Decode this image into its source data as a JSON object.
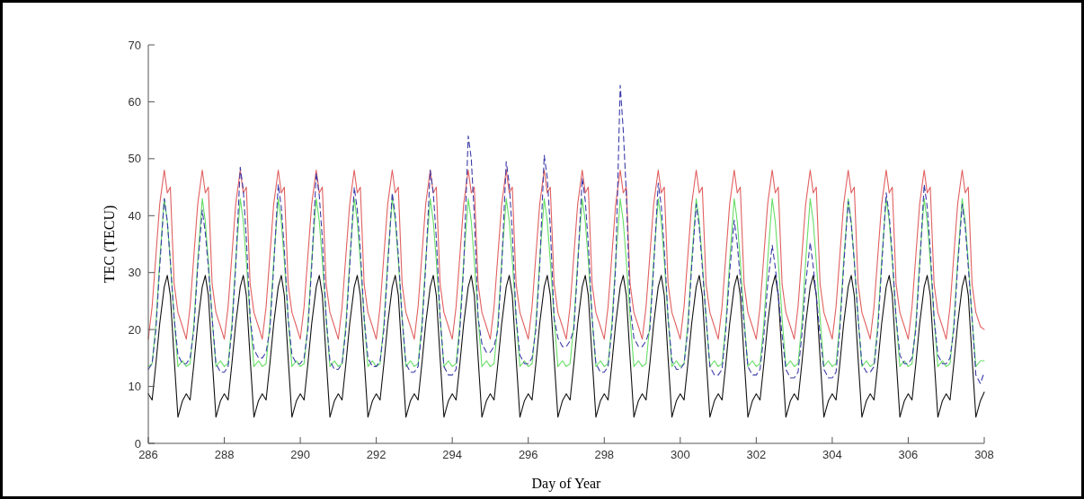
{
  "chart_data": {
    "type": "line",
    "xlabel": "Day of Year",
    "ylabel": "TEC (TECU)",
    "xlim": [
      286,
      308
    ],
    "ylim": [
      0,
      70
    ],
    "xticks": [
      286,
      288,
      290,
      292,
      294,
      296,
      298,
      300,
      302,
      304,
      306,
      308
    ],
    "yticks": [
      0,
      10,
      20,
      30,
      40,
      50,
      60,
      70
    ],
    "marker": "none",
    "x": [
      286,
      286.1,
      286.2,
      286.3,
      286.42,
      286.5,
      286.58,
      286.68,
      286.78,
      286.9,
      287,
      287.1,
      287.2,
      287.3,
      287.42,
      287.5,
      287.58,
      287.68,
      287.78,
      287.9,
      288,
      288.1,
      288.2,
      288.3,
      288.42,
      288.5,
      288.58,
      288.68,
      288.78,
      288.9,
      289,
      289.1,
      289.2,
      289.3,
      289.42,
      289.5,
      289.58,
      289.68,
      289.78,
      289.9,
      290,
      290.1,
      290.2,
      290.3,
      290.42,
      290.5,
      290.58,
      290.68,
      290.78,
      290.9,
      291,
      291.1,
      291.2,
      291.3,
      291.42,
      291.5,
      291.58,
      291.68,
      291.78,
      291.9,
      292,
      292.1,
      292.2,
      292.3,
      292.42,
      292.5,
      292.58,
      292.68,
      292.78,
      292.9,
      293,
      293.1,
      293.2,
      293.3,
      293.42,
      293.5,
      293.58,
      293.68,
      293.78,
      293.9,
      294,
      294.1,
      294.2,
      294.3,
      294.42,
      294.5,
      294.58,
      294.68,
      294.78,
      294.9,
      295,
      295.1,
      295.2,
      295.3,
      295.42,
      295.5,
      295.58,
      295.68,
      295.78,
      295.9,
      296,
      296.1,
      296.2,
      296.3,
      296.42,
      296.5,
      296.58,
      296.68,
      296.78,
      296.9,
      297,
      297.1,
      297.2,
      297.3,
      297.42,
      297.5,
      297.58,
      297.68,
      297.78,
      297.9,
      298,
      298.1,
      298.2,
      298.3,
      298.42,
      298.5,
      298.58,
      298.68,
      298.78,
      298.9,
      299,
      299.1,
      299.2,
      299.3,
      299.42,
      299.5,
      299.58,
      299.68,
      299.78,
      299.9,
      300,
      300.1,
      300.2,
      300.3,
      300.42,
      300.5,
      300.58,
      300.68,
      300.78,
      300.9,
      301,
      301.1,
      301.2,
      301.3,
      301.42,
      301.5,
      301.58,
      301.68,
      301.78,
      301.9,
      302,
      302.1,
      302.2,
      302.3,
      302.42,
      302.5,
      302.58,
      302.68,
      302.78,
      302.9,
      303,
      303.1,
      303.2,
      303.3,
      303.42,
      303.5,
      303.58,
      303.68,
      303.78,
      303.9,
      304,
      304.1,
      304.2,
      304.3,
      304.42,
      304.5,
      304.58,
      304.68,
      304.78,
      304.9,
      305,
      305.1,
      305.2,
      305.3,
      305.42,
      305.5,
      305.58,
      305.68,
      305.78,
      305.9,
      306,
      306.1,
      306.2,
      306.3,
      306.42,
      306.5,
      306.58,
      306.68,
      306.78,
      306.9,
      307,
      307.1,
      307.2,
      307.3,
      307.42,
      307.5,
      307.58,
      307.68,
      307.78,
      307.9,
      308
    ],
    "series": [
      {
        "color": "#e06060",
        "line_style": "solid",
        "values": [
          18.3,
          24,
          33,
          42,
          48,
          44,
          45,
          28,
          23,
          20.5,
          18.3,
          24,
          33,
          42,
          48,
          44,
          45,
          28,
          23,
          20.5,
          18.3,
          24,
          33,
          42,
          48,
          44,
          45,
          28,
          23,
          20.5,
          18.3,
          24,
          33,
          42,
          48,
          44,
          45,
          28,
          23,
          20.5,
          18.3,
          24,
          33,
          42,
          48,
          44,
          45,
          28,
          23,
          20.5,
          18.3,
          24,
          33,
          42,
          48,
          44,
          45,
          28,
          23,
          20.5,
          18.3,
          24,
          33,
          42,
          48,
          44,
          45,
          28,
          23,
          20.5,
          18.3,
          24,
          33,
          42,
          48,
          44,
          45,
          28,
          23,
          20.5,
          18.3,
          24,
          33,
          42,
          48,
          44,
          45,
          28,
          23,
          20.5,
          18.3,
          24,
          33,
          42,
          48,
          44,
          45,
          28,
          23,
          20.5,
          18.3,
          24,
          33,
          42,
          48,
          44,
          45,
          28,
          23,
          20.5,
          18.3,
          24,
          33,
          42,
          48,
          44,
          45,
          28,
          23,
          20.5,
          18.3,
          24,
          33,
          42,
          48,
          44,
          45,
          28,
          23,
          20.5,
          18.3,
          24,
          33,
          42,
          48,
          44,
          45,
          28,
          23,
          20.5,
          18.3,
          24,
          33,
          42,
          48,
          44,
          45,
          28,
          23,
          20.5,
          18.3,
          24,
          33,
          42,
          48,
          44,
          45,
          28,
          23,
          20.5,
          18.3,
          24,
          33,
          42,
          48,
          44,
          45,
          28,
          23,
          20.5,
          18.3,
          24,
          33,
          42,
          48,
          44,
          45,
          28,
          23,
          20.5,
          18.3,
          24,
          33,
          42,
          48,
          44,
          45,
          28,
          23,
          20.5,
          18.3,
          24,
          33,
          42,
          48,
          44,
          45,
          28,
          23,
          20.5,
          18.3,
          24,
          33,
          42,
          48,
          44,
          45,
          28,
          23,
          20.5,
          18.3,
          24,
          33,
          42,
          48,
          44,
          45,
          28,
          23,
          20.5,
          20
        ]
      },
      {
        "color": "#66dd66",
        "line_style": "solid",
        "values": [
          13.5,
          14,
          21,
          32,
          43,
          39,
          32,
          22,
          13.5,
          14.5,
          13.5,
          14,
          21,
          32,
          43,
          39,
          32,
          22,
          13.5,
          14.5,
          13.5,
          14,
          21,
          32,
          43,
          39,
          32,
          22,
          13.5,
          14.5,
          13.5,
          14,
          21,
          32,
          43,
          39,
          32,
          22,
          13.5,
          14.5,
          13.5,
          14,
          21,
          32,
          43,
          39,
          32,
          22,
          13.5,
          14.5,
          13.5,
          14,
          21,
          32,
          43,
          39,
          32,
          22,
          13.5,
          14.5,
          13.5,
          14,
          21,
          32,
          43,
          39,
          32,
          22,
          13.5,
          14.5,
          13.5,
          14,
          21,
          32,
          43,
          39,
          32,
          22,
          13.5,
          14.5,
          13.5,
          14,
          21,
          32,
          43,
          39,
          32,
          22,
          13.5,
          14.5,
          13.5,
          14,
          21,
          32,
          43,
          39,
          32,
          22,
          13.5,
          14.5,
          13.5,
          14,
          21,
          32,
          43,
          39,
          32,
          22,
          13.5,
          14.5,
          13.5,
          14,
          21,
          32,
          43,
          39,
          32,
          22,
          13.5,
          14.5,
          13.5,
          14,
          21,
          32,
          43,
          39,
          32,
          22,
          13.5,
          14.5,
          13.5,
          14,
          21,
          32,
          43,
          39,
          32,
          22,
          13.5,
          14.5,
          13.5,
          14,
          21,
          32,
          43,
          39,
          32,
          22,
          13.5,
          14.5,
          13.5,
          14,
          21,
          32,
          43,
          39,
          32,
          22,
          13.5,
          14.5,
          13.5,
          14,
          21,
          32,
          43,
          39,
          32,
          22,
          13.5,
          14.5,
          13.5,
          14,
          21,
          32,
          43,
          39,
          32,
          22,
          13.5,
          14.5,
          13.5,
          14,
          21,
          32,
          43,
          39,
          32,
          22,
          13.5,
          14.5,
          13.5,
          14,
          21,
          32,
          43,
          39,
          32,
          22,
          13.5,
          14.5,
          13.5,
          14,
          21,
          32,
          43,
          39,
          32,
          22,
          13.5,
          14.5,
          13.5,
          14,
          21,
          32,
          43,
          39,
          32,
          22,
          13.5,
          14.5,
          14.5
        ]
      },
      {
        "color": "#111111",
        "line_style": "solid",
        "values": [
          8.7,
          7.6,
          14,
          21,
          27.5,
          29.5,
          26,
          15,
          4.6,
          7.5,
          8.7,
          7.6,
          14,
          21,
          27.5,
          29.5,
          26,
          15,
          4.6,
          7.5,
          8.7,
          7.6,
          14,
          21,
          27.5,
          29.5,
          26,
          15,
          4.6,
          7.5,
          8.7,
          7.6,
          14,
          21,
          27.5,
          29.5,
          26,
          15,
          4.6,
          7.5,
          8.7,
          7.6,
          14,
          21,
          27.5,
          29.5,
          26,
          15,
          4.6,
          7.5,
          8.7,
          7.6,
          14,
          21,
          27.5,
          29.5,
          26,
          15,
          4.6,
          7.5,
          8.7,
          7.6,
          14,
          21,
          27.5,
          29.5,
          26,
          15,
          4.6,
          7.5,
          8.7,
          7.6,
          14,
          21,
          27.5,
          29.5,
          26,
          15,
          4.6,
          7.5,
          8.7,
          7.6,
          14,
          21,
          27.5,
          29.5,
          26,
          15,
          4.6,
          7.5,
          8.7,
          7.6,
          14,
          21,
          27.5,
          29.5,
          26,
          15,
          4.6,
          7.5,
          8.7,
          7.6,
          14,
          21,
          27.5,
          29.5,
          26,
          15,
          4.6,
          7.5,
          8.7,
          7.6,
          14,
          21,
          27.5,
          29.5,
          26,
          15,
          4.6,
          7.5,
          8.7,
          7.6,
          14,
          21,
          27.5,
          29.5,
          26,
          15,
          4.6,
          7.5,
          8.7,
          7.6,
          14,
          21,
          27.5,
          29.5,
          26,
          15,
          4.6,
          7.5,
          8.7,
          7.6,
          14,
          21,
          27.5,
          29.5,
          26,
          15,
          4.6,
          7.5,
          8.7,
          7.6,
          14,
          21,
          27.5,
          29.5,
          26,
          15,
          4.6,
          7.5,
          8.7,
          7.6,
          14,
          21,
          27.5,
          29.5,
          26,
          15,
          4.6,
          7.5,
          8.7,
          7.6,
          14,
          21,
          27.5,
          29.5,
          26,
          15,
          4.6,
          7.5,
          8.7,
          7.6,
          14,
          21,
          27.5,
          29.5,
          26,
          15,
          4.6,
          7.5,
          8.7,
          7.6,
          14,
          21,
          27.5,
          29.5,
          26,
          15,
          4.6,
          7.5,
          8.7,
          7.6,
          14,
          21,
          27.5,
          29.5,
          26,
          15,
          4.6,
          7.5,
          8.7,
          7.6,
          14,
          21,
          27.5,
          29.5,
          26,
          15,
          4.6,
          7.5,
          9
        ]
      },
      {
        "color": "#3a3aa8",
        "line_style": "dashed",
        "values": [
          13,
          14,
          20,
          31,
          43,
          39,
          32,
          22,
          15.5,
          14,
          14,
          15,
          20,
          31,
          41,
          37,
          31,
          22,
          14,
          12.5,
          12.5,
          13.5,
          20,
          31,
          48.5,
          44.5,
          36,
          22,
          16.5,
          15,
          15,
          16,
          20,
          31,
          45.5,
          41.5,
          34,
          22,
          15.5,
          14,
          14,
          15,
          20,
          31,
          47.5,
          43.5,
          36,
          22,
          14.5,
          13,
          13,
          14,
          20,
          31,
          45,
          41,
          34,
          22,
          15,
          13.5,
          13.5,
          14.5,
          20,
          31,
          44,
          40,
          33,
          22,
          14,
          12.5,
          12.5,
          13.5,
          20,
          31,
          48,
          44,
          36,
          22,
          13.5,
          12,
          12,
          13,
          20,
          31,
          54,
          50,
          40,
          22,
          17.5,
          16,
          16,
          17,
          20,
          31,
          49.5,
          45.5,
          37,
          22,
          15.5,
          14,
          14,
          15,
          20,
          31,
          50.6,
          46.6,
          38,
          22,
          18.5,
          17,
          17,
          18,
          20,
          31,
          46.6,
          42.6,
          35,
          22,
          14,
          12.5,
          12.5,
          13.5,
          20,
          31,
          62.9,
          55,
          44,
          24,
          18.5,
          17,
          17,
          18,
          20,
          31,
          45.7,
          41.7,
          34,
          22,
          14.5,
          13,
          13,
          14,
          20,
          31,
          42,
          38,
          31,
          22,
          13.5,
          12,
          12,
          13,
          20,
          30,
          39.2,
          35,
          29,
          21,
          13.5,
          12,
          12,
          13,
          19,
          28,
          34.8,
          31,
          26,
          19,
          13,
          11.5,
          11.5,
          12.5,
          19,
          28,
          35.3,
          31,
          26,
          19,
          13,
          11.5,
          11.5,
          12.5,
          20,
          31,
          42.5,
          38.5,
          32,
          22,
          14,
          12.5,
          12.5,
          13.5,
          20,
          31,
          44,
          40,
          33,
          22,
          15.5,
          14,
          14,
          15,
          20,
          31,
          45.5,
          41.5,
          34,
          22,
          15.5,
          14,
          14,
          15,
          20,
          31,
          42,
          38,
          31,
          22,
          12,
          10.5,
          12.5
        ]
      }
    ]
  }
}
